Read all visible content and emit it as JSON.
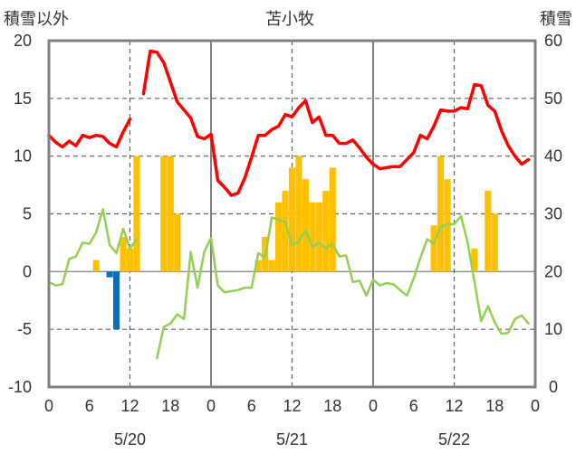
{
  "chart_data": {
    "type": "bar+line",
    "title": "苫小牧",
    "left_axis_label": "積雪以外",
    "right_axis_label": "積雪",
    "left_ylim": [
      -10,
      20
    ],
    "left_yticks": [
      20,
      15,
      10,
      5,
      0,
      -5,
      -10
    ],
    "left_ytick_labels": [
      "20",
      "15",
      "10",
      "5",
      "0",
      "-5",
      "-10"
    ],
    "right_ylim": [
      0,
      60
    ],
    "right_yticks": [
      60,
      50,
      40,
      30,
      20,
      10,
      0
    ],
    "right_ytick_labels": [
      "60",
      "50",
      "40",
      "30",
      "20",
      "10",
      "0"
    ],
    "xlim": [
      0,
      72
    ],
    "xticks": [
      0,
      6,
      12,
      18,
      24,
      30,
      36,
      42,
      48,
      54,
      60,
      66,
      72
    ],
    "xtick_labels": [
      "0",
      "6",
      "12",
      "18",
      "0",
      "6",
      "12",
      "18",
      "0",
      "6",
      "12",
      "18",
      "0"
    ],
    "day_dividers": [
      24,
      48
    ],
    "dashed_verticals": [
      12,
      36,
      60
    ],
    "dashed_horizontals": [
      15,
      10,
      5,
      -5
    ],
    "dates": [
      {
        "x": 12,
        "label": "5/20"
      },
      {
        "x": 36,
        "label": "5/21"
      },
      {
        "x": 60,
        "label": "5/22"
      }
    ],
    "grid": true,
    "colors": {
      "precip_positive": "#ffc000",
      "precip_negative": "#0070c0",
      "red_series": "#ff0000",
      "green_series": "#92d050",
      "frame": "#808080",
      "grid": "#606060"
    },
    "bars": [
      {
        "x": 7,
        "value": 1,
        "color": "precip_positive"
      },
      {
        "x": 9,
        "value": -0.5,
        "color": "precip_negative"
      },
      {
        "x": 10,
        "value": -5,
        "color": "precip_negative"
      },
      {
        "x": 11,
        "value": 3,
        "color": "precip_positive"
      },
      {
        "x": 12,
        "value": 2,
        "color": "precip_positive"
      },
      {
        "x": 13,
        "value": 10,
        "color": "precip_positive"
      },
      {
        "x": 17,
        "value": 10,
        "color": "precip_positive"
      },
      {
        "x": 18,
        "value": 10,
        "color": "precip_positive"
      },
      {
        "x": 19,
        "value": 5,
        "color": "precip_positive"
      },
      {
        "x": 31,
        "value": 1,
        "color": "precip_positive"
      },
      {
        "x": 32,
        "value": 3,
        "color": "precip_positive"
      },
      {
        "x": 33,
        "value": 1,
        "color": "precip_positive"
      },
      {
        "x": 34,
        "value": 6,
        "color": "precip_positive"
      },
      {
        "x": 35,
        "value": 7,
        "color": "precip_positive"
      },
      {
        "x": 36,
        "value": 9,
        "color": "precip_positive"
      },
      {
        "x": 37,
        "value": 10,
        "color": "precip_positive"
      },
      {
        "x": 38,
        "value": 8,
        "color": "precip_positive"
      },
      {
        "x": 39,
        "value": 6,
        "color": "precip_positive"
      },
      {
        "x": 40,
        "value": 6,
        "color": "precip_positive"
      },
      {
        "x": 41,
        "value": 7,
        "color": "precip_positive"
      },
      {
        "x": 42,
        "value": 9,
        "color": "precip_positive"
      },
      {
        "x": 57,
        "value": 4,
        "color": "precip_positive"
      },
      {
        "x": 58,
        "value": 10,
        "color": "precip_positive"
      },
      {
        "x": 59,
        "value": 8,
        "color": "precip_positive"
      },
      {
        "x": 63,
        "value": 2,
        "color": "precip_positive"
      },
      {
        "x": 65,
        "value": 7,
        "color": "precip_positive"
      },
      {
        "x": 66,
        "value": 5,
        "color": "precip_positive"
      }
    ],
    "red_line_segments": [
      [
        [
          0,
          11.8
        ],
        [
          1,
          11.2
        ],
        [
          2,
          10.8
        ],
        [
          3,
          11.3
        ],
        [
          4,
          10.9
        ],
        [
          5,
          11.8
        ],
        [
          6,
          11.6
        ],
        [
          7,
          11.8
        ],
        [
          8,
          11.7
        ],
        [
          9,
          11.1
        ],
        [
          10,
          10.8
        ],
        [
          11,
          12.1
        ],
        [
          12,
          13.2
        ]
      ],
      [
        [
          14,
          15.4
        ],
        [
          15,
          19.1
        ],
        [
          16,
          19.0
        ],
        [
          17,
          18.1
        ],
        [
          18,
          16.4
        ],
        [
          19,
          14.7
        ],
        [
          20,
          14.0
        ],
        [
          21,
          13.3
        ],
        [
          22,
          11.7
        ],
        [
          23,
          11.5
        ],
        [
          24,
          11.9
        ],
        [
          25,
          7.9
        ],
        [
          26,
          7.3
        ],
        [
          27,
          6.6
        ],
        [
          28,
          6.8
        ],
        [
          29,
          8.1
        ],
        [
          30,
          9.9
        ],
        [
          31,
          11.8
        ],
        [
          32,
          11.8
        ],
        [
          33,
          12.3
        ],
        [
          34,
          12.6
        ],
        [
          35,
          13.6
        ],
        [
          36,
          13.4
        ],
        [
          37,
          14.2
        ],
        [
          38,
          14.8
        ],
        [
          39,
          12.9
        ],
        [
          40,
          13.4
        ],
        [
          41,
          11.8
        ],
        [
          42,
          11.8
        ],
        [
          43,
          11.1
        ],
        [
          44,
          11.1
        ],
        [
          45,
          11.4
        ],
        [
          46,
          10.7
        ],
        [
          47,
          9.9
        ],
        [
          48,
          9.3
        ],
        [
          49,
          8.9
        ],
        [
          50,
          9.0
        ],
        [
          51,
          9.1
        ],
        [
          52,
          9.1
        ],
        [
          53,
          9.7
        ],
        [
          54,
          10.3
        ],
        [
          55,
          11.8
        ],
        [
          56,
          11.5
        ],
        [
          57,
          12.6
        ],
        [
          58,
          14.0
        ],
        [
          59,
          13.9
        ],
        [
          60,
          13.9
        ],
        [
          61,
          14.2
        ],
        [
          62,
          14.1
        ],
        [
          63,
          16.2
        ],
        [
          64,
          16.1
        ],
        [
          65,
          14.4
        ],
        [
          66,
          13.9
        ],
        [
          67,
          12.2
        ],
        [
          68,
          10.9
        ],
        [
          69,
          10.0
        ],
        [
          70,
          9.3
        ],
        [
          71,
          9.7
        ]
      ]
    ],
    "green_line_segments": [
      [
        [
          0,
          -0.9
        ],
        [
          1,
          -1.2
        ],
        [
          2,
          -1.1
        ],
        [
          3,
          1.1
        ],
        [
          4,
          1.3
        ],
        [
          5,
          2.5
        ],
        [
          6,
          2.4
        ],
        [
          7,
          3.4
        ],
        [
          8,
          5.4
        ],
        [
          9,
          2.3
        ],
        [
          10,
          1.6
        ],
        [
          11,
          3.7
        ],
        [
          12,
          2.0
        ],
        [
          13,
          2.8
        ]
      ],
      [
        [
          16,
          -7.5
        ],
        [
          17,
          -4.8
        ],
        [
          18,
          -4.5
        ],
        [
          19,
          -3.7
        ],
        [
          20,
          -4.1
        ],
        [
          21,
          1.7
        ],
        [
          22,
          -1.4
        ],
        [
          23,
          1.7
        ],
        [
          24,
          2.9
        ],
        [
          25,
          -1.2
        ],
        [
          26,
          -1.8
        ],
        [
          27,
          -1.7
        ],
        [
          28,
          -1.6
        ],
        [
          29,
          -1.4
        ],
        [
          30,
          -1.4
        ],
        [
          31,
          1.6
        ],
        [
          32,
          1.2
        ],
        [
          33,
          4.7
        ],
        [
          34,
          4.5
        ],
        [
          35,
          4.3
        ],
        [
          36,
          2.3
        ],
        [
          37,
          2.6
        ],
        [
          38,
          3.6
        ],
        [
          39,
          2.1
        ],
        [
          40,
          2.5
        ],
        [
          41,
          2.0
        ],
        [
          42,
          2.4
        ],
        [
          43,
          1.3
        ],
        [
          44,
          1.4
        ],
        [
          45,
          -0.9
        ],
        [
          46,
          -0.8
        ],
        [
          47,
          -2.1
        ],
        [
          48,
          -0.7
        ],
        [
          49,
          -1.2
        ],
        [
          50,
          -1.0
        ],
        [
          51,
          -1.1
        ],
        [
          52,
          -1.6
        ],
        [
          53,
          -2.1
        ],
        [
          54,
          -0.6
        ],
        [
          55,
          1.2
        ],
        [
          56,
          2.8
        ],
        [
          57,
          2.4
        ],
        [
          58,
          3.9
        ],
        [
          59,
          4.1
        ],
        [
          60,
          4.1
        ],
        [
          61,
          4.8
        ],
        [
          62,
          2.5
        ],
        [
          63,
          -0.9
        ],
        [
          64,
          -4.3
        ],
        [
          65,
          -3.0
        ],
        [
          66,
          -4.4
        ],
        [
          67,
          -5.4
        ],
        [
          68,
          -5.3
        ],
        [
          69,
          -4.1
        ],
        [
          70,
          -3.8
        ],
        [
          71,
          -4.5
        ]
      ]
    ]
  }
}
